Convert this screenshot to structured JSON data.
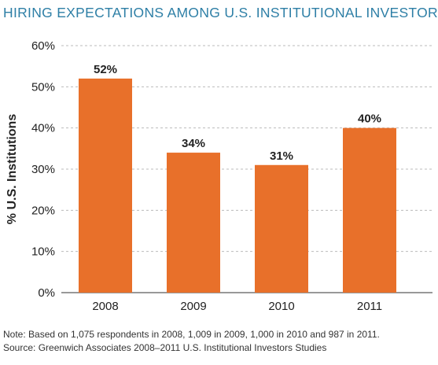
{
  "title": "HIRING EXPECTATIONS AMONG U.S. INSTITUTIONAL INVESTORS",
  "note": "Note: Based on 1,075 respondents in 2008, 1,009 in 2009, 1,000 in 2010 and 987 in 2011.",
  "source": "Source: Greenwich Associates 2008–2011 U.S. Institutional Investors Studies",
  "colors": {
    "bar": "#e8702a",
    "title": "#2e7fa6",
    "grid": "#bbbbbb"
  },
  "chart_data": {
    "type": "bar",
    "title": "HIRING EXPECTATIONS AMONG U.S. INSTITUTIONAL INVESTORS",
    "categories": [
      "2008",
      "2009",
      "2010",
      "2011"
    ],
    "values": [
      52,
      34,
      31,
      40
    ],
    "data_labels": [
      "52%",
      "34%",
      "31%",
      "40%"
    ],
    "ylabel": "% U.S. Institutions",
    "xlabel": "",
    "ylim": [
      0,
      60
    ],
    "yticks": [
      0,
      10,
      20,
      30,
      40,
      50,
      60
    ],
    "ytick_labels": [
      "0%",
      "10%",
      "20%",
      "30%",
      "40%",
      "50%",
      "60%"
    ],
    "grid": true,
    "grid_style": "dashed"
  }
}
